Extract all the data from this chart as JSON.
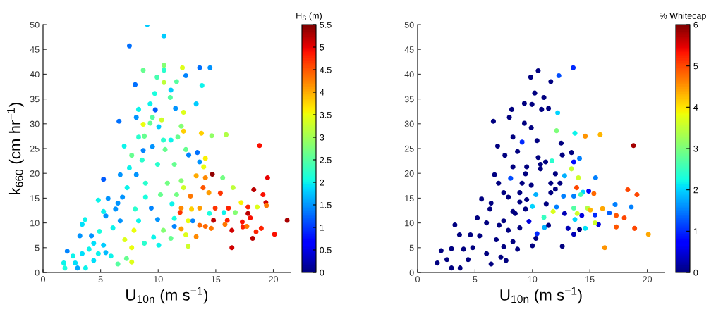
{
  "chart_data": [
    {
      "type": "scatter",
      "xlabel": "U$_{10n}$ (m s$^{−1}$)",
      "ylabel": "k$_{660}$ (cm hr$^{−1}$)",
      "clabel": "H$_{S}$ (m)",
      "xlim": [
        0,
        21.5
      ],
      "xticks": [
        0,
        5,
        10,
        15,
        20
      ],
      "ylim": [
        0,
        50
      ],
      "yticks": [
        0,
        5,
        10,
        15,
        20,
        25,
        30,
        35,
        40,
        45,
        50
      ],
      "clim": [
        0,
        5.5
      ],
      "cticks": [
        0,
        0.5,
        1,
        1.5,
        2,
        2.5,
        3,
        3.5,
        4,
        4.5,
        5,
        5.5
      ],
      "grid": false,
      "legend": false,
      "marker": "circle",
      "x": [
        9.05,
        10.5,
        7.5,
        10.5,
        10.5,
        8.7,
        12.1,
        13.6,
        14.5,
        12.4,
        9.9,
        8.0,
        13.8,
        11.6,
        10.5,
        11.1,
        9.7,
        11.05,
        13.3,
        9.3,
        9.75,
        11.5,
        8.3,
        12.2,
        8.1,
        6.6,
        9.5,
        10.3,
        8.7,
        10.05,
        9.3,
        12.0,
        12.2,
        13.75,
        14.65,
        15.9,
        8.8,
        8.3,
        10.45,
        11.1,
        11.7,
        7.05,
        8.7,
        9.5,
        10.6,
        12.4,
        12.65,
        13.4,
        18.8,
        7.7,
        8.6,
        6.7,
        5.25,
        7.5,
        9.95,
        11.4,
        13.6,
        14.1,
        13.95,
        14.7,
        14.1,
        15.6,
        19.5,
        13.3,
        16.5,
        18.3,
        19.1,
        15.4,
        14.4,
        13.9,
        12.8,
        8.9,
        8.1,
        10.8,
        12.0,
        12.2,
        7.3,
        6.9,
        8.9,
        10.2,
        11.6,
        5.65,
        4.8,
        6.5,
        19.35,
        17.2,
        17.8,
        19.4,
        18.6,
        16.1,
        14.95,
        13.6,
        12.9,
        12.0,
        9.4,
        11.2,
        8.0,
        6.3,
        5.25,
        16.7,
        15.7,
        14.45,
        11.9,
        17.8,
        21.2,
        18.0,
        17.3,
        16.0,
        14.8,
        13.0,
        12.6,
        11.4,
        9.95,
        8.3,
        6.7,
        5.45,
        3.65,
        3.4,
        17.35,
        17.7,
        15.8,
        14.1,
        13.6,
        18.95,
        16.4,
        14.6,
        12.0,
        11.4,
        10.45,
        7.9,
        6.07,
        4.9,
        18.5,
        20.1,
        18.2,
        13.3,
        12.4,
        11.1,
        9.6,
        7.1,
        7.7,
        4.2,
        3.2,
        4.4,
        5.25,
        16.4,
        12.6,
        10.05,
        8.8,
        5.9,
        6.5,
        7.7,
        7.25,
        2.1,
        2.6,
        3.4,
        4.0,
        1.8,
        1.9,
        3.0,
        3.7,
        4.4,
        4.8,
        5.45,
        2.8
      ],
      "series": [
        {
          "values": [
            50.0,
            47.7,
            45.7,
            41.8,
            40.8,
            40.8,
            41.3,
            41.3,
            41.3,
            39.7,
            39.4,
            37.9,
            37.7,
            38.5,
            38.3,
            36.8,
            36.1,
            35.3,
            34.0,
            34.0,
            32.8,
            33.1,
            32.9,
            32.3,
            31.3,
            30.5,
            31.3,
            30.8,
            29.9,
            29.4,
            30.1,
            29.5,
            28.5,
            28.1,
            27.6,
            27.8,
            27.5,
            27.3,
            26.7,
            26.7,
            27.3,
            25.5,
            24.6,
            25.4,
            24.8,
            24.8,
            23.7,
            24.2,
            25.6,
            23.6,
            22.7,
            19.7,
            18.8,
            21.1,
            21.8,
            21.8,
            22.3,
            23.0,
            21.3,
            19.8,
            19.1,
            19.1,
            19.1,
            19.5,
            17.1,
            16.7,
            15.7,
            16.0,
            16.1,
            17.1,
            15.4,
            18.0,
            19.7,
            18.0,
            18.5,
            17.1,
            17.1,
            15.2,
            15.2,
            15.7,
            15.7,
            14.9,
            14.6,
            14.0,
            14.1,
            14.1,
            13.2,
            13.5,
            13.2,
            13.0,
            13.0,
            13.0,
            12.8,
            13.0,
            13.0,
            13.8,
            12.8,
            12.8,
            12.3,
            12.1,
            12.1,
            11.9,
            12.1,
            11.9,
            10.5,
            11.0,
            10.2,
            10.5,
            10.5,
            10.4,
            10.4,
            10.9,
            10.7,
            10.4,
            10.4,
            11.4,
            10.7,
            9.7,
            9.2,
            9.3,
            9.7,
            9.3,
            9.5,
            8.9,
            8.5,
            8.9,
            8.8,
            9.3,
            8.5,
            8.5,
            9.0,
            8.3,
            8.2,
            7.7,
            6.9,
            7.2,
            7.6,
            6.9,
            7.1,
            6.6,
            5.0,
            7.4,
            7.4,
            5.9,
            5.5,
            5.0,
            5.3,
            5.5,
            5.9,
            3.3,
            1.7,
            2.1,
            2.8,
            4.3,
            3.3,
            3.8,
            4.7,
            1.9,
            0.9,
            0.9,
            0.9,
            2.4,
            3.8,
            4.0,
            1.9
          ],
          "cvalues": [
            1.8,
            1.8,
            1.3,
            2.8,
            2.2,
            2.6,
            3.4,
            1.3,
            1.5,
            1.4,
            2.4,
            1.3,
            2.0,
            2.5,
            3.2,
            1.8,
            2.1,
            2.5,
            1.8,
            2.0,
            1.2,
            1.5,
            2.0,
            3.4,
            1.5,
            1.3,
            2.5,
            3.3,
            3.5,
            1.8,
            2.6,
            2.8,
            3.8,
            3.8,
            2.9,
            3.1,
            2.6,
            2.2,
            2.2,
            2.0,
            2.6,
            2.0,
            1.4,
            1.5,
            2.6,
            2.6,
            1.4,
            1.3,
            4.9,
            2.6,
            2.2,
            1.5,
            1.2,
            2.0,
            2.2,
            2.6,
            1.5,
            3.6,
            3.5,
            5.4,
            4.2,
            2.7,
            5.0,
            4.0,
            3.2,
            5.2,
            4.9,
            4.7,
            4.1,
            4.5,
            4.3,
            2.2,
            1.5,
            2.7,
            2.8,
            3.3,
            2.0,
            1.5,
            2.1,
            2.6,
            2.7,
            1.5,
            2.0,
            1.5,
            5.1,
            3.6,
            4.8,
            4.3,
            3.4,
            4.8,
            4.7,
            4.1,
            3.8,
            4.2,
            1.4,
            2.0,
            2.2,
            1.5,
            2.0,
            2.8,
            2.0,
            2.1,
            4.7,
            5.2,
            5.3,
            4.9,
            4.9,
            4.8,
            5.2,
            1.4,
            3.5,
            2.1,
            1.5,
            2.0,
            1.5,
            1.5,
            2.0,
            1.9,
            4.8,
            4.3,
            4.3,
            4.4,
            4.4,
            4.8,
            5.1,
            4.3,
            4.1,
            1.4,
            2.8,
            3.5,
            2.0,
            2.1,
            4.8,
            4.9,
            5.2,
            4.2,
            3.4,
            2.6,
            2.0,
            3.4,
            3.5,
            1.5,
            1.5,
            1.9,
            1.8,
            5.1,
            3.3,
            2.0,
            2.2,
            2.0,
            2.5,
            3.4,
            2.6,
            1.4,
            2.0,
            1.9,
            2.0,
            2.0,
            2.1,
            1.6,
            2.0,
            1.9,
            2.0,
            1.7,
            1.9
          ]
        }
      ]
    },
    {
      "type": "scatter",
      "xlabel": "U$_{10n}$ (m s$^{−1}$)",
      "clabel": "% Whitecap",
      "xlim": [
        0,
        21.5
      ],
      "xticks": [
        0,
        5,
        10,
        15,
        20
      ],
      "ylim": [
        0,
        50
      ],
      "yticks": [
        0,
        5,
        10,
        15,
        20,
        25,
        30,
        35,
        40,
        45,
        50
      ],
      "clim": [
        0,
        6
      ],
      "cticks": [
        0,
        1,
        2,
        3,
        4,
        5,
        6
      ],
      "grid": false,
      "legend": false,
      "marker": "circle",
      "x": [
        13.55,
        10.5,
        9.85,
        12.3,
        11.6,
        10.2,
        11.0,
        9.3,
        9.96,
        8.2,
        10.8,
        11.4,
        12.2,
        7.99,
        6.6,
        9.3,
        9.9,
        12.1,
        13.7,
        14.6,
        15.9,
        8.3,
        9.1,
        10.4,
        12.5,
        6.97,
        18.8,
        7.6,
        8.7,
        10.5,
        12.6,
        13.4,
        14.1,
        11.7,
        13.6,
        6.7,
        8.1,
        9.4,
        10.7,
        12.8,
        13.4,
        14.0,
        15.5,
        13.85,
        14.9,
        14.4,
        15.35,
        18.3,
        19.1,
        14.2,
        12.7,
        13.6,
        11.6,
        10.3,
        8.9,
        7.5,
        5.57,
        6.4,
        17.2,
        18.6,
        16.1,
        14.8,
        15.04,
        13.6,
        12.1,
        11.2,
        10.0,
        9.4,
        8.3,
        6.3,
        16.7,
        15.45,
        14.3,
        13.9,
        11.8,
        12.8,
        17.3,
        18.0,
        11.0,
        15.75,
        15.45,
        13.7,
        9.7,
        7.5,
        5.2,
        3.25,
        17.3,
        18.9,
        14.6,
        14.1,
        13.1,
        11.05,
        11.4,
        10.4,
        13.6,
        20.1,
        16.3,
        12.6,
        10.0,
        10.3,
        3.65,
        4.6,
        5.4,
        2.05,
        2.95,
        4.0,
        4.8,
        1.72,
        2.95,
        3.7,
        2.55,
        4.4,
        6.4,
        6.0,
        7.25,
        7.7,
        8.7,
        8.3,
        7.5,
        6.85,
        7.9,
        8.9,
        7.1,
        6.0,
        8.5,
        8.9,
        7.9,
        9.5,
        9.1,
        7.05,
        9.9,
        11.6,
        12.0,
        8.3,
        9.5,
        10.7,
        11.15,
        12.0,
        12.4
      ],
      "series": [
        {
          "values": [
            41.3,
            40.7,
            39.4,
            39.7,
            38.5,
            36.2,
            35.3,
            34.1,
            33.9,
            32.9,
            32.9,
            33.1,
            32.2,
            31.3,
            30.5,
            30.1,
            29.2,
            28.6,
            28.1,
            27.5,
            27.8,
            27.3,
            26.3,
            26.6,
            26.1,
            25.5,
            25.6,
            23.6,
            24.4,
            23.2,
            23.7,
            24.2,
            23.0,
            22.5,
            22.3,
            19.7,
            19.0,
            19.9,
            20.9,
            19.5,
            20.9,
            19.1,
            19.1,
            17.1,
            16.4,
            16.2,
            15.9,
            16.7,
            15.7,
            15.7,
            15.4,
            15.4,
            16.1,
            15.7,
            16.1,
            16.1,
            14.8,
            14.0,
            13.7,
            13.2,
            12.9,
            13.0,
            12.6,
            13.0,
            13.2,
            13.8,
            13.3,
            12.8,
            12.3,
            12.8,
            12.0,
            11.6,
            11.5,
            11.9,
            12.3,
            11.9,
            11.5,
            11.0,
            11.1,
            9.7,
            10.0,
            10.7,
            10.3,
            10.4,
            11.0,
            9.6,
            9.2,
            8.9,
            8.9,
            8.7,
            8.9,
            9.1,
            9.5,
            7.8,
            7.7,
            7.7,
            5.0,
            5.3,
            5.4,
            6.9,
            7.6,
            7.6,
            7.4,
            4.4,
            4.8,
            4.7,
            5.0,
            1.9,
            0.9,
            0.9,
            2.6,
            2.6,
            1.7,
            3.8,
            3.1,
            2.4,
            4.7,
            6.2,
            5.2,
            6.6,
            8.5,
            9.0,
            9.5,
            10.0,
            11.9,
            14.2,
            15.2,
            14.7,
            18.0,
            18.0,
            17.6,
            18.0,
            16.8,
            21.3,
            21.3,
            21.8,
            22.3,
            19.9,
            18.0
          ],
          "cvalues": [
            1.0,
            0,
            0,
            1.2,
            0,
            0,
            0,
            0,
            0,
            0,
            0,
            0,
            2.0,
            0,
            0,
            0,
            0,
            3.0,
            2.2,
            4.5,
            4.3,
            0,
            1.0,
            0,
            0,
            0,
            5.8,
            0,
            0,
            0,
            0,
            0,
            1.5,
            2.4,
            0.8,
            0,
            1.2,
            0,
            0,
            1.8,
            3.5,
            3.6,
            1.5,
            5.0,
            0.7,
            2.0,
            4.8,
            5.0,
            5.0,
            2.6,
            1.5,
            1.5,
            0,
            1.8,
            0,
            0,
            0,
            0,
            1.5,
            1.5,
            4.4,
            3.4,
            4.3,
            2.7,
            1.5,
            0,
            2.0,
            0,
            0,
            0,
            1.3,
            1.0,
            0.5,
            3.6,
            3.7,
            0.3,
            4.9,
            5.0,
            2.5,
            0.5,
            3.6,
            2.0,
            0.5,
            0,
            0,
            0,
            4.9,
            5.0,
            2.1,
            0,
            0.3,
            1.8,
            0,
            1.0,
            0.3,
            4.4,
            4.5,
            0,
            0,
            0,
            0,
            0,
            0,
            0,
            0,
            0,
            0,
            0,
            0,
            0,
            0,
            0,
            0,
            0,
            0,
            0,
            0,
            0,
            0,
            0,
            0,
            0,
            0,
            0,
            0,
            0,
            0,
            0,
            0,
            0,
            0,
            0,
            0,
            0,
            0,
            0,
            0,
            0,
            0
          ]
        }
      ]
    }
  ]
}
